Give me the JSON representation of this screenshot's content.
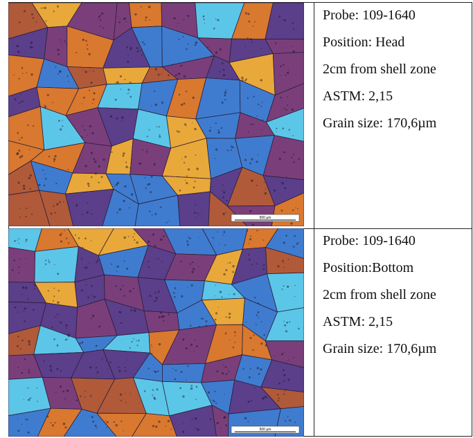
{
  "rows": [
    {
      "scale_label": "500 µm",
      "lines": [
        "Probe: 109-1640",
        "Position: Head",
        "2cm from shell zone",
        "ASTM: 2,15",
        "Grain size: 170,6µm"
      ]
    },
    {
      "scale_label": "500 µm",
      "lines": [
        "Probe: 109-1640",
        "Position:Bottom",
        " 2cm from shell zone",
        "ASTM: 2,15",
        "Grain size: 170,6µm"
      ]
    }
  ],
  "colors": {
    "violet": "#5b3f8a",
    "purple": "#7a3f7a",
    "blue": "#3f7ccf",
    "cyan": "#5cc6e8",
    "orange": "#d9782f",
    "gold": "#e9a83a",
    "rust": "#b05a3a"
  }
}
